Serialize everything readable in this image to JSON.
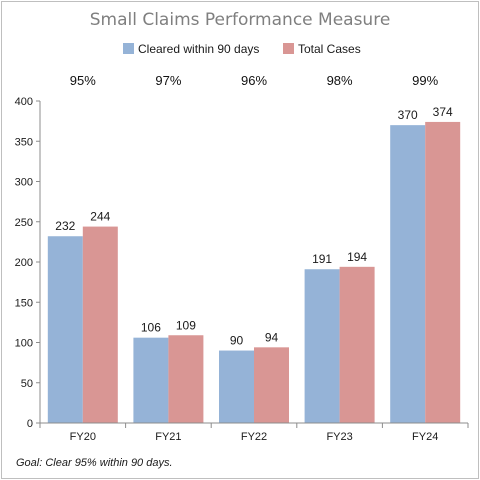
{
  "chart_data": {
    "type": "bar",
    "title": "Small Claims Performance Measure",
    "categories": [
      "FY20",
      "FY21",
      "FY22",
      "FY23",
      "FY24"
    ],
    "series": [
      {
        "name": "Cleared within 90 days",
        "values": [
          232,
          106,
          90,
          191,
          370
        ],
        "color": "#95B3D7"
      },
      {
        "name": "Total Cases",
        "values": [
          244,
          109,
          94,
          194,
          374
        ],
        "color": "#D99694"
      }
    ],
    "clearance_rates": [
      "95%",
      "97%",
      "96%",
      "98%",
      "99%"
    ],
    "ylim": [
      0,
      400
    ],
    "yticks": [
      0,
      50,
      100,
      150,
      200,
      250,
      300,
      350,
      400
    ],
    "grid": false,
    "legend": "top-center",
    "footnote": "Goal:  Clear 95% within 90 days."
  }
}
